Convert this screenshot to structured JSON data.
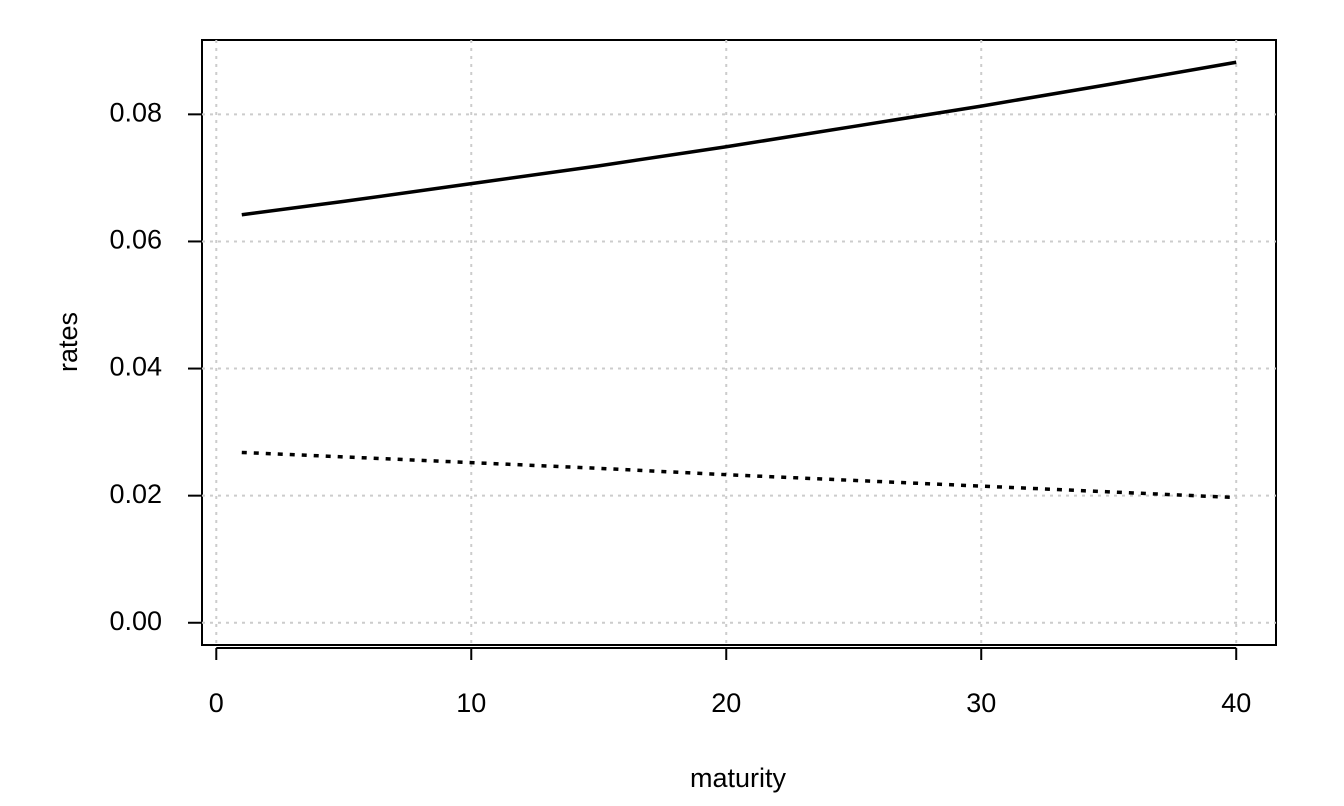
{
  "chart_data": {
    "type": "line",
    "x_label": "maturity",
    "y_label": "rates",
    "x": [
      1,
      5,
      10,
      15,
      20,
      25,
      30,
      35,
      40
    ],
    "series": [
      {
        "color": "#000000",
        "linestyle": "solid",
        "values": [
          0.0642,
          0.0663,
          0.0691,
          0.0719,
          0.0749,
          0.0781,
          0.0813,
          0.0847,
          0.0882
        ]
      },
      {
        "color": "#000000",
        "linestyle": "dotted",
        "values": [
          0.0268,
          0.0261,
          0.0252,
          0.0243,
          0.0233,
          0.0224,
          0.0215,
          0.0206,
          0.0197
        ]
      }
    ],
    "xlim": [
      -0.56,
      41.56
    ],
    "xticks": [
      0,
      10,
      20,
      30,
      40
    ],
    "ylim": [
      -0.0035,
      0.0917
    ],
    "yticks": [
      {
        "value": 0,
        "label": "0.00"
      },
      {
        "value": 0.02,
        "label": "0.02"
      },
      {
        "value": 0.04,
        "label": "0.04"
      },
      {
        "value": 0.06,
        "label": "0.06"
      },
      {
        "value": 0.08,
        "label": "0.08"
      }
    ],
    "grid": true
  }
}
